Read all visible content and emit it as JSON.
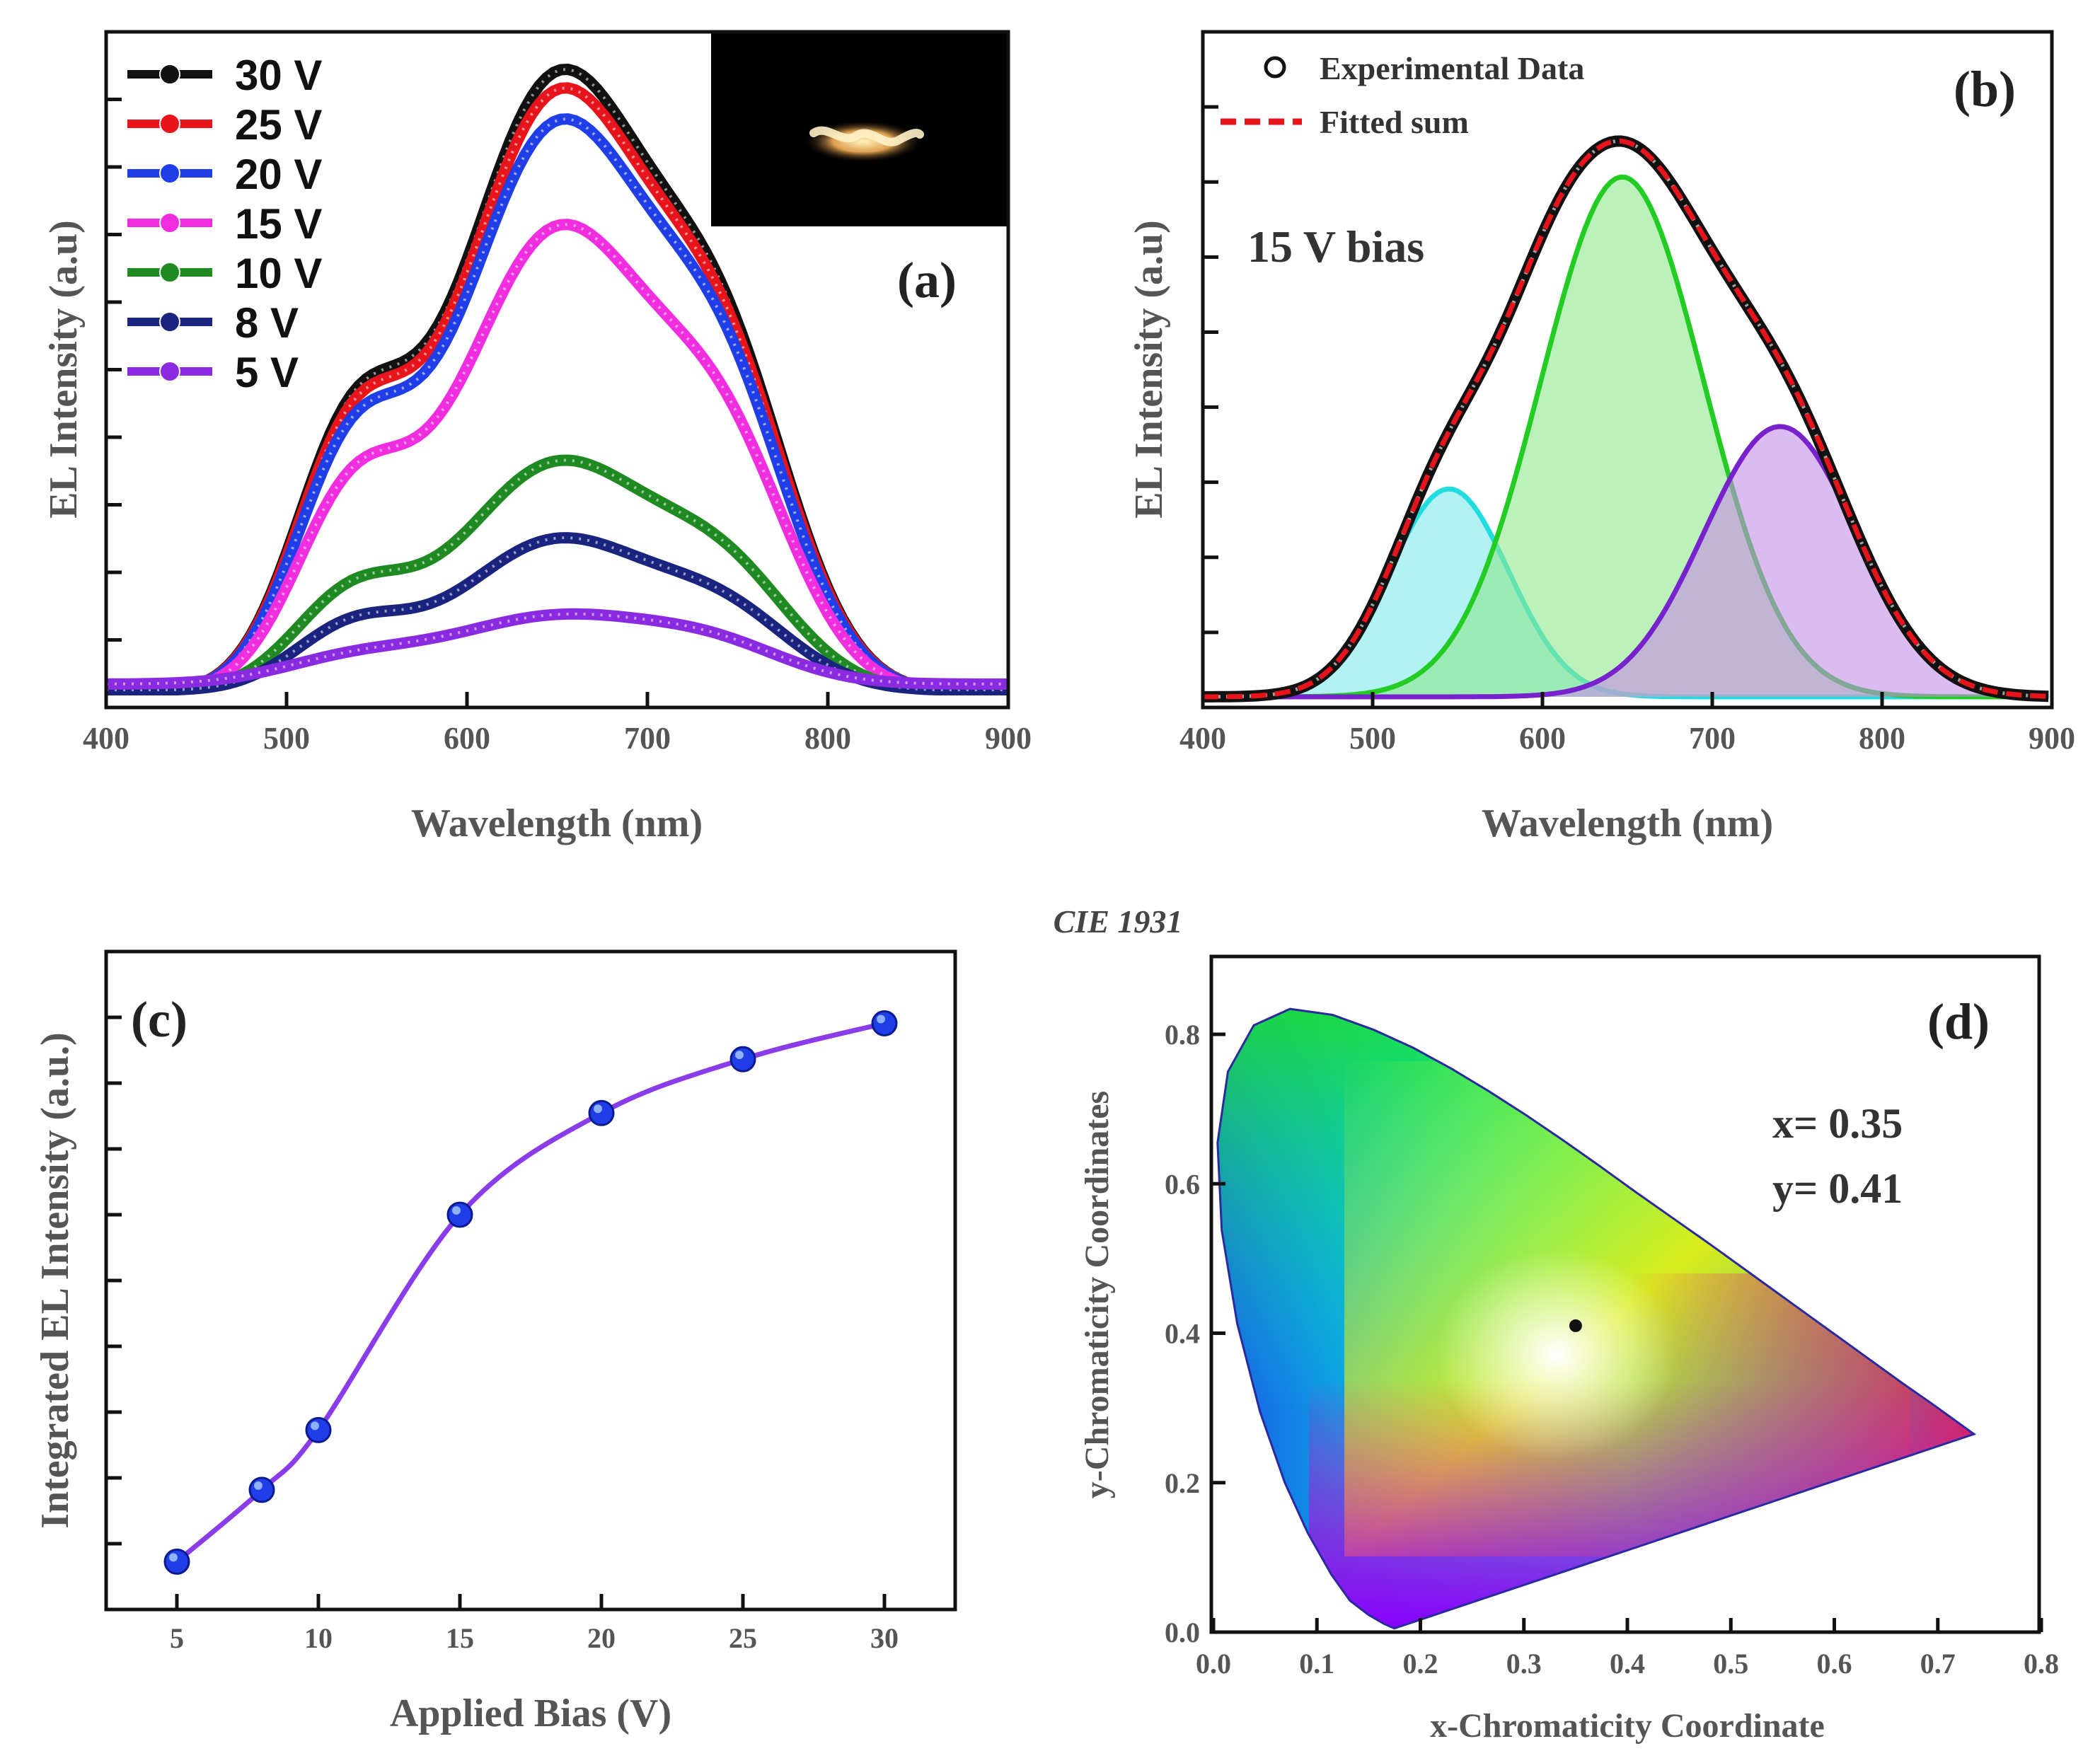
{
  "chart_data": [
    {
      "panel": "(a)",
      "type": "line",
      "xlabel": "Wavelength (nm)",
      "ylabel": "EL Intensity (a.u)",
      "xlim": [
        400,
        900
      ],
      "ylim": [
        0,
        1.07
      ],
      "xticks": [
        400,
        500,
        600,
        700,
        800,
        900
      ],
      "xtick_labels": [
        "400",
        "500",
        "600",
        "700",
        "800",
        "900"
      ],
      "ytick_labels_shown": false,
      "legend_position": "top-left",
      "inset": "photograph of glowing device (top-right)",
      "series": [
        {
          "name": "30 V",
          "color": "#111111",
          "peak_wavelength": 650,
          "peak_intensity": 1.0
        },
        {
          "name": "25 V",
          "color": "#e8141c",
          "peak_wavelength": 650,
          "peak_intensity": 0.97
        },
        {
          "name": "20 V",
          "color": "#1f3ee8",
          "peak_wavelength": 650,
          "peak_intensity": 0.92
        },
        {
          "name": "15 V",
          "color": "#f02ee0",
          "peak_wavelength": 655,
          "peak_intensity": 0.75
        },
        {
          "name": "10 V",
          "color": "#1f8a22",
          "peak_wavelength": 652,
          "peak_intensity": 0.37
        },
        {
          "name": "8 V",
          "color": "#1a237e",
          "peak_wavelength": 652,
          "peak_intensity": 0.245
        },
        {
          "name": "5 V",
          "color": "#8a2be2",
          "peak_wavelength": 650,
          "peak_intensity": 0.11
        }
      ]
    },
    {
      "panel": "(b)",
      "type": "line",
      "xlabel": "Wavelength (nm)",
      "ylabel": "EL Intensity (a.u)",
      "xlim": [
        400,
        900
      ],
      "ylim": [
        0,
        1.15
      ],
      "xticks": [
        400,
        500,
        600,
        700,
        800,
        900
      ],
      "xtick_labels": [
        "400",
        "500",
        "600",
        "700",
        "800",
        "900"
      ],
      "ytick_labels_shown": false,
      "annotation": "15 V bias",
      "legend_position": "top-left",
      "legend": [
        "Experimental Data",
        "Fitted sum"
      ],
      "gaussian_components": [
        {
          "center": 545,
          "amplitude": 0.4,
          "color": "#22dde0"
        },
        {
          "center": 647,
          "amplitude": 1.0,
          "color": "#22cc22"
        },
        {
          "center": 740,
          "amplitude": 0.52,
          "color": "#7722cc"
        }
      ]
    },
    {
      "panel": "(c)",
      "type": "line",
      "xlabel": "Applied Bias (V)",
      "ylabel": "Integrated EL Intensity (a.u.)",
      "x": [
        5,
        8,
        10,
        15,
        20,
        25,
        30
      ],
      "y": [
        0.08,
        0.2,
        0.3,
        0.66,
        0.83,
        0.92,
        0.98
      ],
      "xlim": [
        2.5,
        32.5
      ],
      "ylim": [
        0,
        1.1
      ],
      "xticks": [
        5,
        10,
        15,
        20,
        25,
        30
      ],
      "xtick_labels": [
        "5",
        "10",
        "15",
        "20",
        "25",
        "30"
      ],
      "ytick_labels_shown": false
    },
    {
      "panel": "(d)",
      "type": "scatter",
      "title": "CIE 1931",
      "xlabel": "x-Chromaticity Coordinate",
      "ylabel": "y-Chromaticity Coordinates",
      "xlim": [
        0,
        0.8
      ],
      "ylim": [
        0,
        0.9
      ],
      "xticks": [
        0.0,
        0.1,
        0.2,
        0.3,
        0.4,
        0.5,
        0.6,
        0.7,
        0.8
      ],
      "xtick_labels": [
        "0.0",
        "0.1",
        "0.2",
        "0.3",
        "0.4",
        "0.5",
        "0.6",
        "0.7",
        "0.8"
      ],
      "yticks": [
        0.0,
        0.2,
        0.4,
        0.6,
        0.8
      ],
      "ytick_labels": [
        "0.0",
        "0.2",
        "0.4",
        "0.6",
        "0.8"
      ],
      "point": {
        "x": 0.35,
        "y": 0.41
      },
      "annotation_x": "x= 0.35",
      "annotation_y": "y= 0.41"
    }
  ]
}
